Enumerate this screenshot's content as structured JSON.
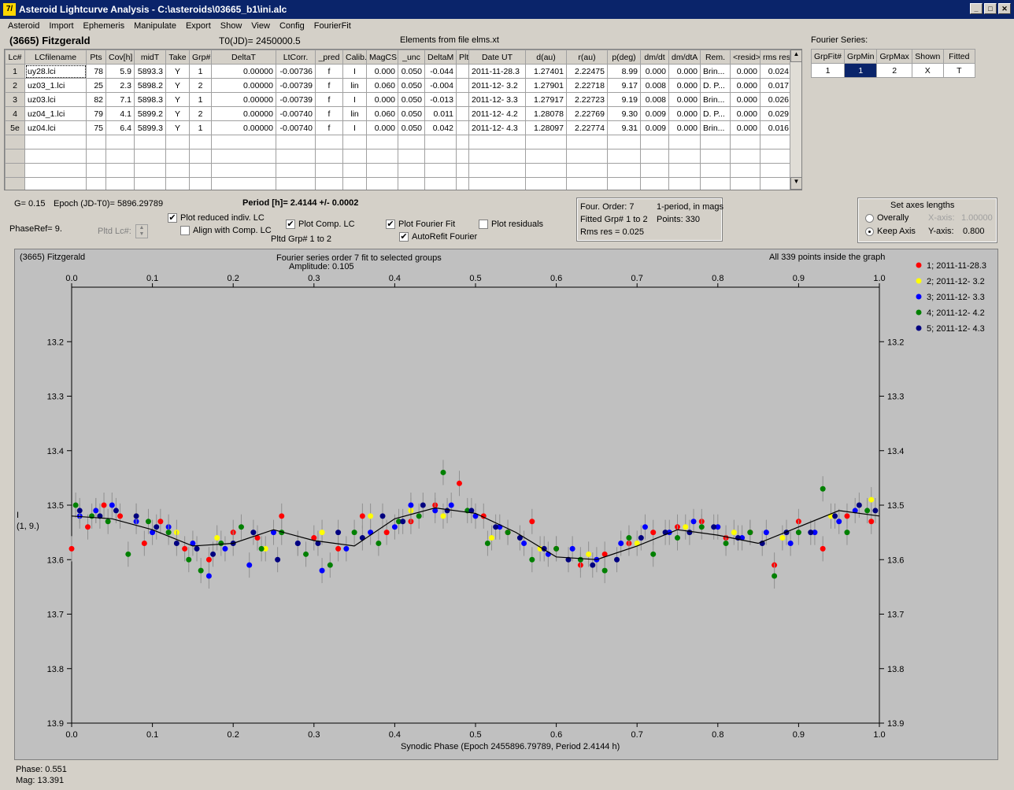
{
  "window": {
    "title": "Asteroid Lightcurve Analysis - C:\\asteroids\\03665_b1\\ini.alc",
    "icon_glyph": "7/"
  },
  "menu": [
    "Asteroid",
    "Import",
    "Ephemeris",
    "Manipulate",
    "Export",
    "Show",
    "View",
    "Config",
    "FourierFit"
  ],
  "header": {
    "object": "(3665) Fitzgerald",
    "t0": "T0(JD)= 2450000.5",
    "elements": "Elements from file elms.xt"
  },
  "lc_table": {
    "columns": [
      "Lc#",
      "LCfilename",
      "Pts",
      "Cov[h]",
      "midT",
      "Take",
      "Grp#",
      "DeltaT",
      "LtCorr.",
      "_pred",
      "Calib.",
      "MagCS",
      "_unc",
      "DeltaM",
      "Plt",
      "Date UT",
      "d(au)",
      "r(au)",
      "p(deg)",
      "dm/dt",
      "dm/dtA",
      "Rem.",
      "<resid>",
      "rms res"
    ],
    "rows": [
      [
        "1",
        "uy28.lci",
        "78",
        "5.9",
        "5893.3",
        "Y",
        "1",
        "0.00000",
        "-0.00736",
        "f",
        "I",
        "0.000",
        "0.050",
        "-0.044",
        "",
        "2011-11-28.3",
        "1.27401",
        "2.22475",
        "8.99",
        "0.000",
        "0.000",
        "Brin...",
        "0.000",
        "0.024"
      ],
      [
        "2",
        "uz03_1.lci",
        "25",
        "2.3",
        "5898.2",
        "Y",
        "2",
        "0.00000",
        "-0.00739",
        "f",
        "lin",
        "0.060",
        "0.050",
        "-0.004",
        "",
        "2011-12- 3.2",
        "1.27901",
        "2.22718",
        "9.17",
        "0.008",
        "0.000",
        "D. P...",
        "0.000",
        "0.017"
      ],
      [
        "3",
        "uz03.lci",
        "82",
        "7.1",
        "5898.3",
        "Y",
        "1",
        "0.00000",
        "-0.00739",
        "f",
        "I",
        "0.000",
        "0.050",
        "-0.013",
        "",
        "2011-12- 3.3",
        "1.27917",
        "2.22723",
        "9.19",
        "0.008",
        "0.000",
        "Brin...",
        "0.000",
        "0.026"
      ],
      [
        "4",
        "uz04_1.lci",
        "79",
        "4.1",
        "5899.2",
        "Y",
        "2",
        "0.00000",
        "-0.00740",
        "f",
        "lin",
        "0.060",
        "0.050",
        "0.011",
        "",
        "2011-12- 4.2",
        "1.28078",
        "2.22769",
        "9.30",
        "0.009",
        "0.000",
        "D. P...",
        "0.000",
        "0.029"
      ],
      [
        "5e",
        "uz04.lci",
        "75",
        "6.4",
        "5899.3",
        "Y",
        "1",
        "0.00000",
        "-0.00740",
        "f",
        "I",
        "0.000",
        "0.050",
        "0.042",
        "",
        "2011-12- 4.3",
        "1.28097",
        "2.22774",
        "9.31",
        "0.009",
        "0.000",
        "Brin...",
        "0.000",
        "0.016"
      ]
    ]
  },
  "fourier_table": {
    "caption": "Fourier Series:",
    "columns": [
      "GrpFit#",
      "GrpMin",
      "GrpMax",
      "Shown",
      "Fitted"
    ],
    "row": [
      "1",
      "1",
      "2",
      "X",
      "T"
    ]
  },
  "params": {
    "g": "G= 0.15",
    "epoch": "Epoch (JD-T0)= 5896.29789",
    "period": "Period [h]= 2.4144 +/- 0.0002",
    "phaseref": "PhaseRef= 9.",
    "pltd_lc": "Pltd Lc#:",
    "pltd_grp": "Pltd Grp#  1   to   2"
  },
  "checks": {
    "plot_reduced": {
      "label": "Plot reduced indiv. LC",
      "checked": "✔"
    },
    "align_comp": {
      "label": "Align with Comp. LC",
      "checked": ""
    },
    "plot_comp": {
      "label": "Plot Comp. LC",
      "checked": "✔"
    },
    "plot_fourier": {
      "label": "Plot Fourier Fit",
      "checked": "✔"
    },
    "autorefit": {
      "label": "AutoRefit Fourier",
      "checked": "✔"
    },
    "plot_residuals": {
      "label": "Plot residuals",
      "checked": ""
    }
  },
  "fitinfo": {
    "order": "Four. Order:  7",
    "period_mode": "1-period, in mags",
    "fitted": "Fitted Grp# 1 to 2",
    "points": "Points: 330",
    "rms": "Rms res     = 0.025"
  },
  "axes_box": {
    "title": "Set axes lengths",
    "overall": "Overally",
    "keep": "Keep Axis",
    "xaxis_label": "X-axis:",
    "xaxis_value": "1.00000",
    "yaxis_label": "Y-axis:",
    "yaxis_value": "0.800"
  },
  "plot": {
    "object": "(3665) Fitzgerald",
    "fit_title": "Fourier series order 7 fit to selected groups",
    "amplitude": "Amplitude: 0.105",
    "inside": "All 339 points inside the graph",
    "ylabel_1": "I",
    "ylabel_2": "(1, 9.)",
    "xlabel": "Synodic Phase (Epoch 2455896.79789, Period 2.4144 h)"
  },
  "status": {
    "phase": "Phase:  0.551",
    "mag": "Mag:   13.391"
  },
  "chart_data": {
    "type": "scatter",
    "x_ticks": [
      "0.0",
      "0.1",
      "0.2",
      "0.3",
      "0.4",
      "0.5",
      "0.6",
      "0.7",
      "0.8",
      "0.9",
      "1.0"
    ],
    "y_ticks": [
      "13.2",
      "13.3",
      "13.4",
      "13.5",
      "13.6",
      "13.7",
      "13.8",
      "13.9"
    ],
    "xlim": [
      0.0,
      1.0
    ],
    "ylim": [
      13.9,
      13.1
    ],
    "legend_position": "right",
    "legend": [
      {
        "label": "1; 2011-11-28.3",
        "color": "#ff0000"
      },
      {
        "label": "2; 2011-12- 3.2",
        "color": "#ffff00"
      },
      {
        "label": "3; 2011-12- 3.3",
        "color": "#0000ff"
      },
      {
        "label": "4; 2011-12- 4.2",
        "color": "#008000"
      },
      {
        "label": "5; 2011-12- 4.3",
        "color": "#000080"
      }
    ],
    "fourier_fit": {
      "x": [
        0.0,
        0.05,
        0.1,
        0.15,
        0.2,
        0.25,
        0.3,
        0.35,
        0.4,
        0.45,
        0.5,
        0.55,
        0.6,
        0.65,
        0.7,
        0.75,
        0.8,
        0.85,
        0.9,
        0.95,
        1.0
      ],
      "y": [
        13.52,
        13.525,
        13.545,
        13.575,
        13.57,
        13.545,
        13.565,
        13.575,
        13.525,
        13.505,
        13.515,
        13.55,
        13.595,
        13.6,
        13.575,
        13.545,
        13.555,
        13.57,
        13.54,
        13.51,
        13.52
      ]
    },
    "series": [
      {
        "name": "1; 2011-11-28.3",
        "x": [
          0.0,
          0.02,
          0.04,
          0.06,
          0.09,
          0.11,
          0.14,
          0.17,
          0.2,
          0.23,
          0.26,
          0.3,
          0.33,
          0.36,
          0.39,
          0.42,
          0.45,
          0.48,
          0.51,
          0.54,
          0.57,
          0.6,
          0.63,
          0.66,
          0.69,
          0.72,
          0.75,
          0.78,
          0.81,
          0.84,
          0.87,
          0.9,
          0.93,
          0.96,
          0.99
        ],
        "y": [
          13.58,
          13.54,
          13.5,
          13.52,
          13.57,
          13.53,
          13.58,
          13.6,
          13.55,
          13.56,
          13.52,
          13.56,
          13.58,
          13.52,
          13.55,
          13.53,
          13.5,
          13.46,
          13.52,
          13.55,
          13.53,
          13.58,
          13.61,
          13.59,
          13.57,
          13.55,
          13.54,
          13.53,
          13.56,
          13.55,
          13.61,
          13.53,
          13.58,
          13.52,
          13.53
        ]
      },
      {
        "name": "2; 2011-12- 3.2",
        "x": [
          0.03,
          0.08,
          0.13,
          0.18,
          0.24,
          0.31,
          0.37,
          0.42,
          0.46,
          0.52,
          0.58,
          0.64,
          0.7,
          0.76,
          0.82,
          0.88,
          0.94,
          0.99
        ],
        "y": [
          13.51,
          13.52,
          13.55,
          13.56,
          13.58,
          13.55,
          13.52,
          13.51,
          13.52,
          13.56,
          13.58,
          13.59,
          13.57,
          13.54,
          13.55,
          13.56,
          13.52,
          13.49
        ]
      },
      {
        "name": "3; 2011-12- 3.3",
        "x": [
          0.01,
          0.03,
          0.05,
          0.08,
          0.1,
          0.12,
          0.15,
          0.17,
          0.19,
          0.22,
          0.25,
          0.28,
          0.31,
          0.34,
          0.37,
          0.4,
          0.42,
          0.45,
          0.47,
          0.5,
          0.53,
          0.56,
          0.59,
          0.62,
          0.65,
          0.68,
          0.71,
          0.74,
          0.77,
          0.8,
          0.83,
          0.86,
          0.89,
          0.92,
          0.95,
          0.97
        ],
        "y": [
          13.52,
          13.51,
          13.5,
          13.53,
          13.55,
          13.54,
          13.57,
          13.63,
          13.58,
          13.61,
          13.55,
          13.57,
          13.62,
          13.58,
          13.55,
          13.54,
          13.5,
          13.51,
          13.5,
          13.52,
          13.54,
          13.57,
          13.59,
          13.58,
          13.6,
          13.57,
          13.54,
          13.55,
          13.53,
          13.54,
          13.56,
          13.55,
          13.57,
          13.55,
          13.53,
          13.51
        ]
      },
      {
        "name": "4; 2011-12- 4.2",
        "x": [
          0.005,
          0.025,
          0.045,
          0.07,
          0.095,
          0.12,
          0.145,
          0.16,
          0.185,
          0.21,
          0.235,
          0.26,
          0.29,
          0.32,
          0.35,
          0.38,
          0.405,
          0.43,
          0.46,
          0.49,
          0.515,
          0.54,
          0.57,
          0.6,
          0.63,
          0.66,
          0.69,
          0.72,
          0.75,
          0.78,
          0.81,
          0.84,
          0.87,
          0.9,
          0.93,
          0.96,
          0.985
        ],
        "y": [
          13.5,
          13.52,
          13.53,
          13.59,
          13.53,
          13.55,
          13.6,
          13.62,
          13.57,
          13.54,
          13.58,
          13.55,
          13.59,
          13.61,
          13.55,
          13.57,
          13.53,
          13.52,
          13.44,
          13.51,
          13.57,
          13.55,
          13.6,
          13.58,
          13.6,
          13.62,
          13.56,
          13.59,
          13.56,
          13.54,
          13.57,
          13.55,
          13.63,
          13.55,
          13.47,
          13.55,
          13.51
        ]
      },
      {
        "name": "5; 2011-12- 4.3",
        "x": [
          0.01,
          0.035,
          0.055,
          0.08,
          0.105,
          0.13,
          0.155,
          0.175,
          0.2,
          0.225,
          0.255,
          0.28,
          0.305,
          0.33,
          0.36,
          0.385,
          0.41,
          0.435,
          0.465,
          0.495,
          0.525,
          0.555,
          0.585,
          0.615,
          0.645,
          0.675,
          0.705,
          0.735,
          0.765,
          0.795,
          0.825,
          0.855,
          0.885,
          0.915,
          0.945,
          0.975,
          0.995
        ],
        "y": [
          13.51,
          13.52,
          13.51,
          13.52,
          13.54,
          13.57,
          13.58,
          13.59,
          13.57,
          13.55,
          13.6,
          13.57,
          13.57,
          13.55,
          13.56,
          13.52,
          13.53,
          13.5,
          13.51,
          13.51,
          13.54,
          13.56,
          13.58,
          13.6,
          13.61,
          13.6,
          13.56,
          13.55,
          13.55,
          13.54,
          13.56,
          13.57,
          13.55,
          13.55,
          13.52,
          13.5,
          13.51
        ]
      }
    ]
  }
}
